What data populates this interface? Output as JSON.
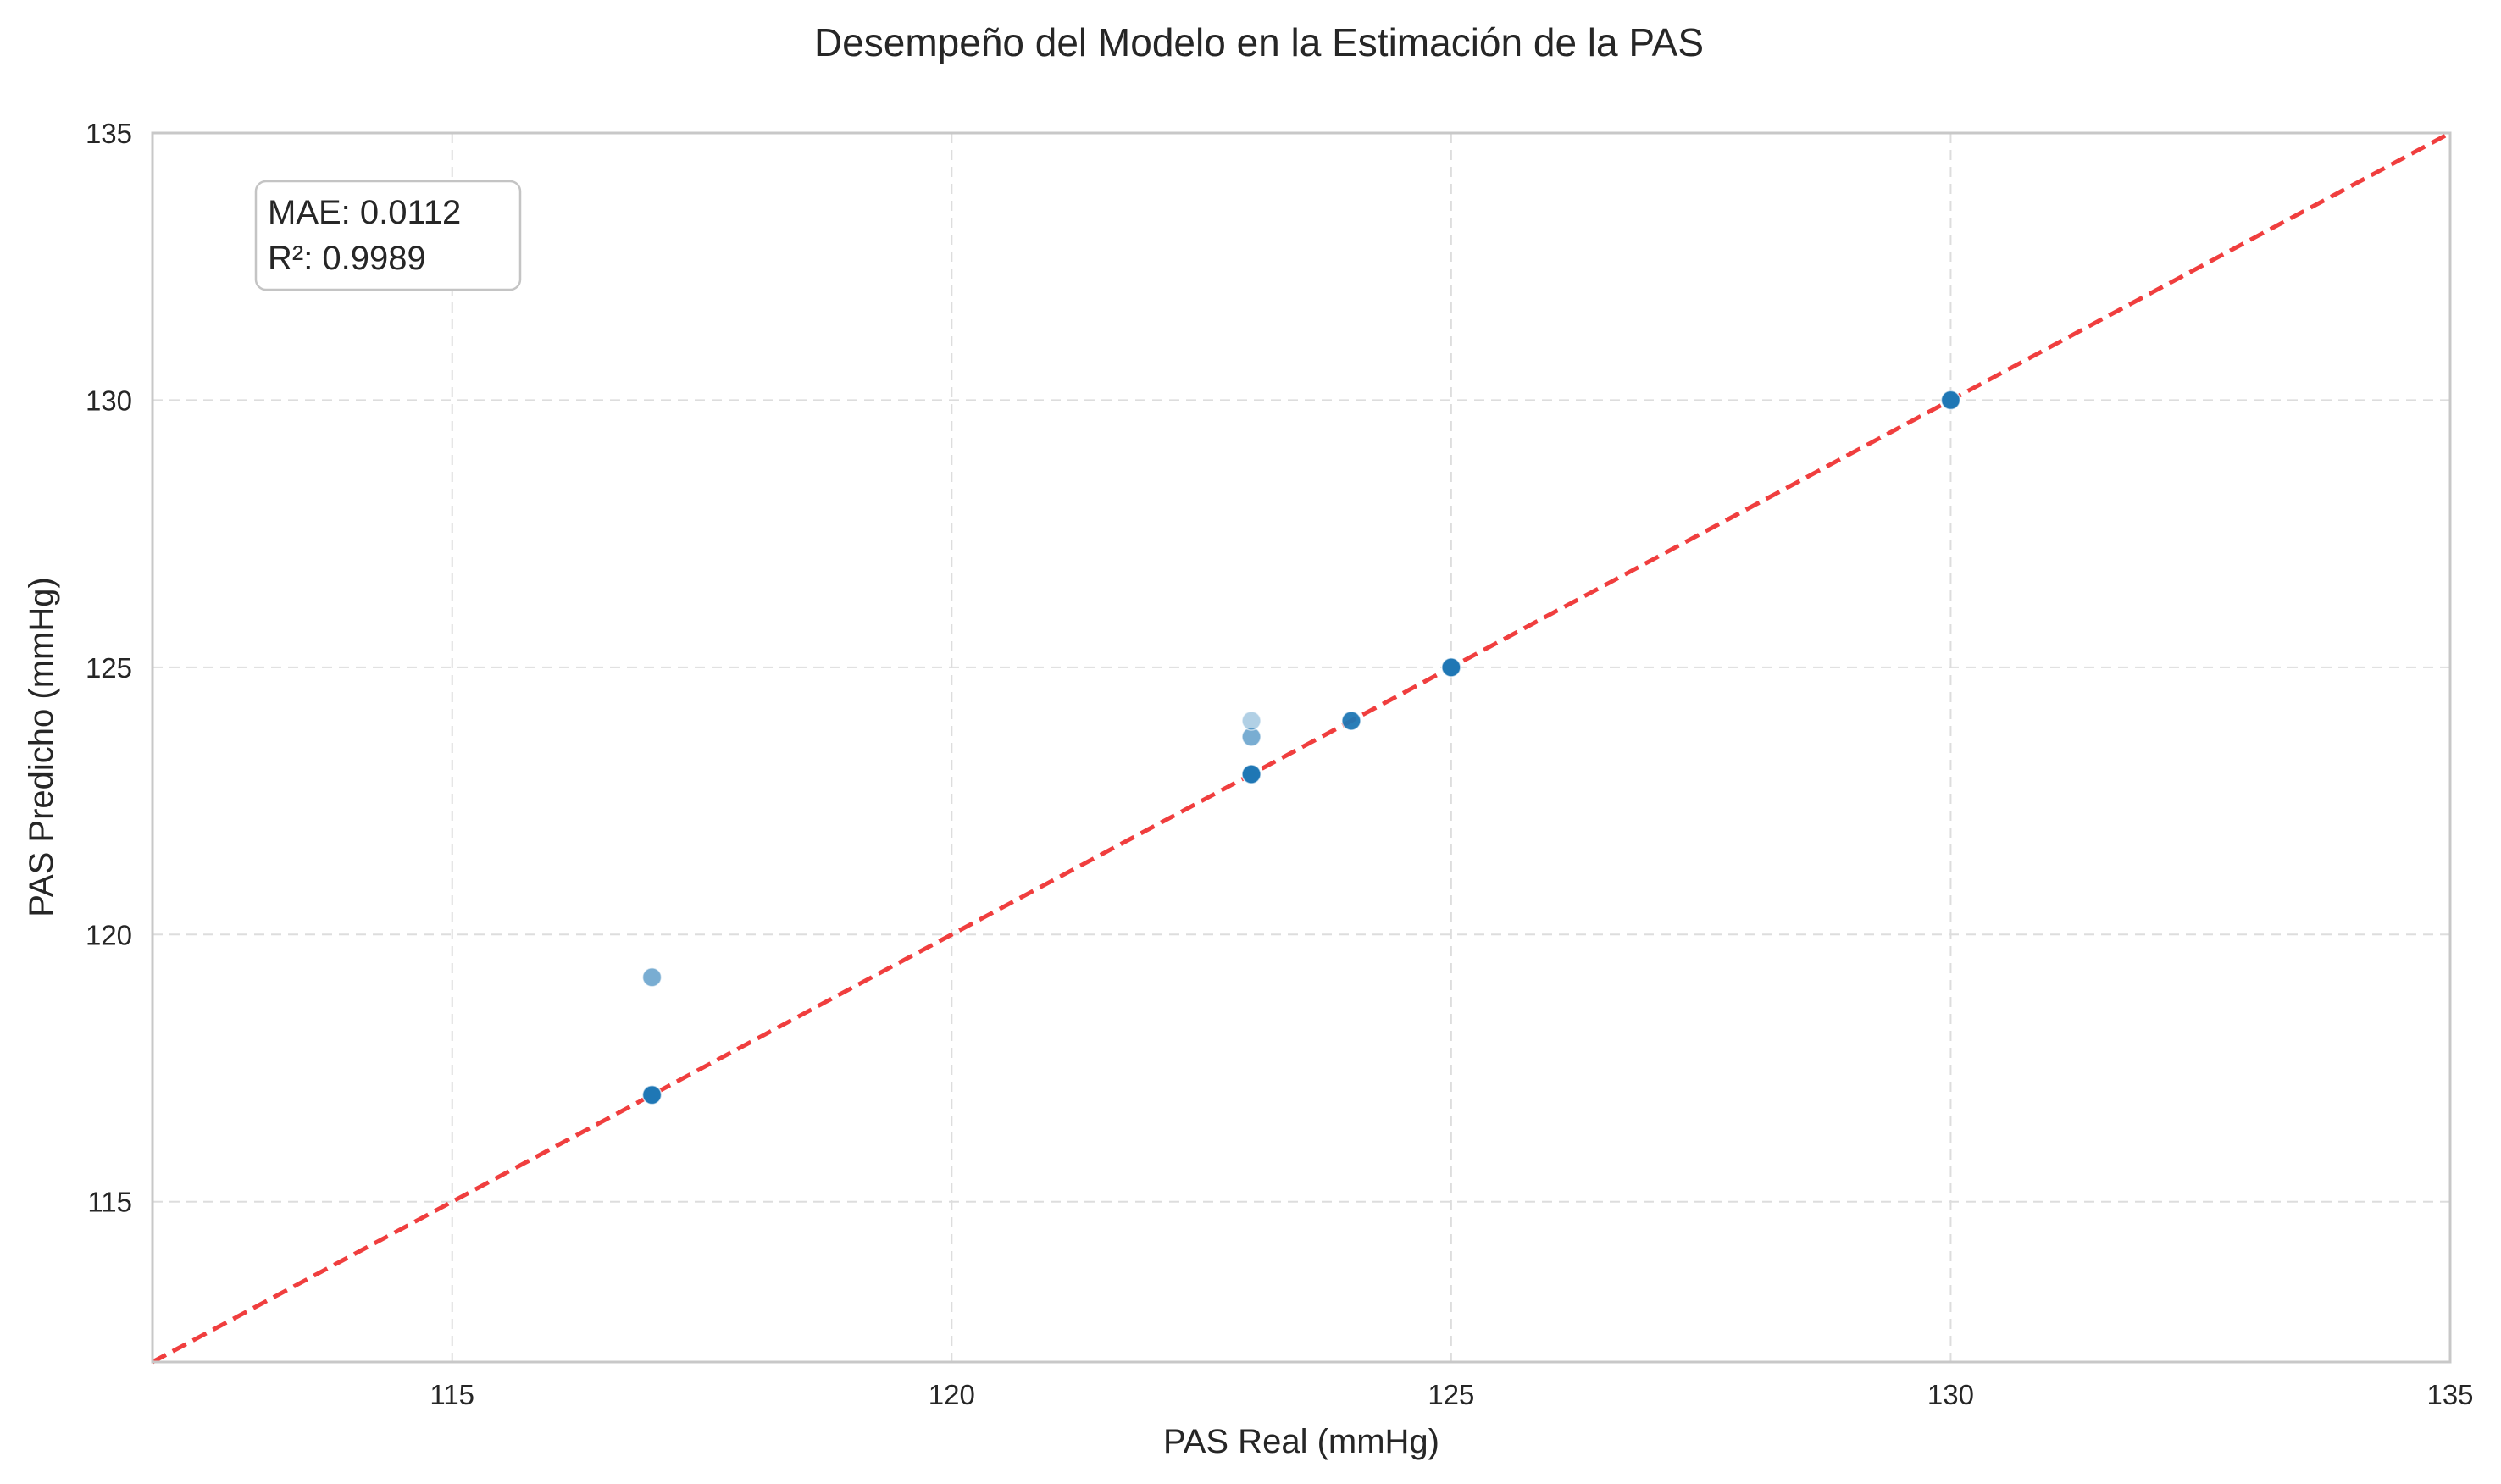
{
  "chart_data": {
    "type": "scatter",
    "title": "Desempeño del Modelo en la Estimación de la PAS",
    "xlabel": "PAS Real (mmHg)",
    "ylabel": "PAS Predicho (mmHg)",
    "xlim": [
      112,
      135
    ],
    "ylim": [
      112,
      135
    ],
    "xticks": [
      "115",
      "120",
      "125",
      "130",
      "135"
    ],
    "yticks": [
      "115",
      "120",
      "125",
      "130",
      "135"
    ],
    "grid": true,
    "reference_line": {
      "from": [
        112,
        112
      ],
      "to": [
        135,
        135
      ],
      "color": "#f03e3e",
      "style": "dashed"
    },
    "points": [
      {
        "x": 117,
        "y": 117.0,
        "alpha": 0.95
      },
      {
        "x": 117,
        "y": 117.0,
        "alpha": 0.95
      },
      {
        "x": 117,
        "y": 119.2,
        "alpha": 0.6
      },
      {
        "x": 123,
        "y": 123.0,
        "alpha": 0.95
      },
      {
        "x": 123,
        "y": 123.0,
        "alpha": 0.95
      },
      {
        "x": 123,
        "y": 123.7,
        "alpha": 0.6
      },
      {
        "x": 123,
        "y": 124.0,
        "alpha": 0.35
      },
      {
        "x": 124,
        "y": 124.0,
        "alpha": 0.95
      },
      {
        "x": 125,
        "y": 125.0,
        "alpha": 0.95
      },
      {
        "x": 125,
        "y": 125.0,
        "alpha": 0.95
      },
      {
        "x": 130,
        "y": 130.0,
        "alpha": 0.95
      },
      {
        "x": 130,
        "y": 130.0,
        "alpha": 0.95
      }
    ],
    "point_color": "#1f77b4",
    "stats": {
      "mae": "MAE: 0.0112",
      "r2": "R²: 0.9989"
    }
  }
}
